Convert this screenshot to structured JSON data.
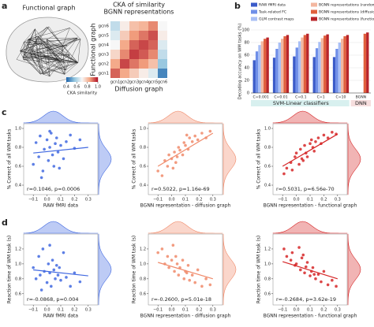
{
  "panel_labels": [
    "a",
    "b",
    "c",
    "d"
  ],
  "brain_graph": {
    "title": "Functional graph"
  },
  "chart_data": [
    {
      "type": "heatmap",
      "title": [
        "CKA of similarity",
        "BGNN representations"
      ],
      "rows": [
        "gcn6",
        "gcn5",
        "gcn4",
        "gcn3",
        "gcn2",
        "gcn1"
      ],
      "columns": [
        "gcn1",
        "gcn2",
        "gcn3",
        "gcn4",
        "gcn5",
        "gcn6"
      ],
      "values": [
        [
          0.62,
          0.72,
          0.8,
          0.82,
          0.88,
          0.7
        ],
        [
          0.66,
          0.78,
          0.86,
          0.9,
          0.94,
          0.72
        ],
        [
          0.7,
          0.84,
          0.92,
          0.95,
          0.92,
          0.66
        ],
        [
          0.76,
          0.88,
          0.96,
          0.93,
          0.88,
          0.62
        ],
        [
          0.84,
          0.95,
          0.9,
          0.86,
          0.8,
          0.56
        ],
        [
          0.92,
          0.84,
          0.78,
          0.72,
          0.66,
          0.45
        ]
      ],
      "xlabel": "Diffusion graph",
      "ylabel": "Functional graph",
      "clim": [
        0.4,
        1.0
      ],
      "cticks": [
        0.4,
        0.6,
        0.8,
        {
          "value": 1.0,
          "label": "1.0"
        }
      ],
      "colorbar_label": "CKA similarity"
    },
    {
      "type": "bar",
      "ylabel": "Decoding accuracy on WM tasks (%)",
      "categories": [
        "C=0.001",
        "C=0.01",
        "C=0.1",
        "C=1",
        "C=10",
        "BGNN"
      ],
      "group_labels": [
        "SVM-Linear classifiers",
        "DNN"
      ],
      "ylim": [
        0,
        100
      ],
      "yticks": [
        0,
        20,
        40,
        60,
        80,
        100
      ],
      "series": [
        {
          "name": "RAW fMRI data",
          "color": "#3b5bc9",
          "values": [
            52,
            56,
            58,
            57,
            57,
            null
          ]
        },
        {
          "name": "Task-related FC",
          "color": "#6f8fe8",
          "values": [
            66,
            70,
            72,
            71,
            70,
            null
          ]
        },
        {
          "name": "GLM contrast maps",
          "color": "#a9bff5",
          "values": [
            76,
            80,
            82,
            81,
            80,
            null
          ]
        },
        {
          "name": "BGNN representations (random graph)",
          "color": "#f3b79f",
          "values": [
            82,
            86,
            88,
            87,
            86,
            null
          ]
        },
        {
          "name": "BGNN representations (diffusion graph)",
          "color": "#e0603d",
          "values": [
            86,
            90,
            92,
            91,
            90,
            94
          ]
        },
        {
          "name": "BGNN representations (functional graph)",
          "color": "#b8242a",
          "values": [
            88,
            92,
            94,
            93,
            92,
            96
          ]
        }
      ]
    },
    {
      "type": "scatter",
      "color": "#4169e1",
      "xlabel": "RAW fMRI data",
      "ylabel": "% Correct of all WM tasks",
      "annotation": "r=0.1046, p=0.0006",
      "x": [
        -0.1,
        -0.08,
        -0.06,
        -0.05,
        -0.03,
        -0.02,
        0,
        0.01,
        0.02,
        0.03,
        0.04,
        0.05,
        0.06,
        0.07,
        0.08,
        0.1,
        0.12,
        0.14,
        0.17,
        0.2,
        0.24,
        -0.04,
        0.02,
        0.09
      ],
      "y": [
        0.62,
        0.85,
        0.7,
        0.92,
        0.55,
        0.78,
        0.88,
        0.66,
        0.8,
        0.95,
        0.72,
        0.6,
        0.84,
        0.9,
        0.75,
        0.82,
        0.68,
        0.86,
        0.93,
        0.79,
        0.88,
        0.48,
        0.97,
        0.58
      ],
      "fit": {
        "x": [
          -0.1,
          0.3
        ],
        "y": [
          0.74,
          0.8
        ]
      },
      "xlim": [
        -0.17,
        0.37
      ],
      "xticks": [
        {
          "value": -0.1,
          "label": "−0.1"
        },
        {
          "value": 0,
          "label": "0.0"
        },
        0.1,
        0.2,
        0.3
      ],
      "ylim": [
        0.3,
        1.05
      ],
      "yticks": [
        0.4,
        0.6,
        0.8,
        {
          "value": 1.0,
          "label": "1.0"
        }
      ]
    },
    {
      "type": "scatter",
      "color": "#f08a6a",
      "xlabel": "BGNN representation - diffusion graph",
      "ylabel": "% Correct of all WM tasks",
      "annotation": "r=0.5022, p=1.16e-69",
      "x": [
        -0.1,
        -0.07,
        -0.05,
        -0.03,
        -0.02,
        0,
        0.01,
        0.02,
        0.04,
        0.05,
        0.06,
        0.08,
        0.09,
        0.1,
        0.12,
        0.13,
        0.15,
        0.17,
        0.19,
        0.22,
        0.25,
        0.28,
        0.03,
        0.11
      ],
      "y": [
        0.55,
        0.5,
        0.66,
        0.6,
        0.72,
        0.68,
        0.58,
        0.75,
        0.7,
        0.8,
        0.77,
        0.72,
        0.85,
        0.82,
        0.78,
        0.9,
        0.86,
        0.92,
        0.88,
        0.95,
        0.9,
        0.97,
        0.64,
        0.93
      ],
      "fit": {
        "x": [
          -0.1,
          0.3
        ],
        "y": [
          0.6,
          0.95
        ]
      },
      "xlim": [
        -0.17,
        0.37
      ],
      "xticks": [
        {
          "value": -0.1,
          "label": "−0.1"
        },
        {
          "value": 0,
          "label": "0.0"
        },
        0.1,
        0.2,
        0.3
      ],
      "ylim": [
        0.3,
        1.05
      ],
      "yticks": [
        0.4,
        0.6,
        0.8,
        {
          "value": 1.0,
          "label": "1.0"
        }
      ]
    },
    {
      "type": "scatter",
      "color": "#d62728",
      "xlabel": "BGNN representation - functional graph",
      "ylabel": "% Correct of all WM tasks",
      "annotation": "r=0.5031, p=6.56e-70",
      "x": [
        -0.09,
        -0.07,
        -0.04,
        -0.03,
        -0.01,
        0,
        0.02,
        0.03,
        0.04,
        0.06,
        0.07,
        0.08,
        0.1,
        0.11,
        0.12,
        0.14,
        0.16,
        0.18,
        0.2,
        0.23,
        0.26,
        0.29,
        0.05,
        0.13
      ],
      "y": [
        0.52,
        0.58,
        0.64,
        0.56,
        0.7,
        0.74,
        0.62,
        0.78,
        0.68,
        0.82,
        0.74,
        0.7,
        0.84,
        0.88,
        0.8,
        0.86,
        0.9,
        0.84,
        0.93,
        0.9,
        0.96,
        0.94,
        0.66,
        0.76
      ],
      "fit": {
        "x": [
          -0.1,
          0.3
        ],
        "y": [
          0.6,
          0.94
        ]
      },
      "xlim": [
        -0.17,
        0.37
      ],
      "xticks": [
        {
          "value": -0.1,
          "label": "−0.1"
        },
        {
          "value": 0,
          "label": "0.0"
        },
        0.1,
        0.2,
        0.3
      ],
      "ylim": [
        0.3,
        1.05
      ],
      "yticks": [
        0.4,
        0.6,
        0.8,
        {
          "value": 1.0,
          "label": "1.0"
        }
      ]
    },
    {
      "type": "scatter",
      "color": "#4169e1",
      "xlabel": "RAW fMRI data",
      "ylabel": "Reaction time of WM task (s)",
      "annotation": "r=-0.0868, p=0.004",
      "x": [
        -0.1,
        -0.08,
        -0.06,
        -0.05,
        -0.03,
        -0.02,
        0,
        0.01,
        0.02,
        0.03,
        0.04,
        0.05,
        0.06,
        0.07,
        0.08,
        0.1,
        0.12,
        0.14,
        0.17,
        0.2,
        0.24,
        -0.04,
        0.02,
        0.09
      ],
      "y": [
        0.95,
        0.8,
        1.1,
        0.85,
        1.2,
        0.9,
        0.75,
        1.0,
        0.88,
        0.7,
        1.05,
        0.92,
        0.8,
        0.98,
        0.85,
        0.78,
        1.15,
        0.82,
        0.7,
        0.88,
        0.76,
        0.65,
        1.25,
        0.95
      ],
      "fit": {
        "x": [
          -0.1,
          0.3
        ],
        "y": [
          0.92,
          0.84
        ]
      },
      "xlim": [
        -0.17,
        0.37
      ],
      "xticks": [
        {
          "value": -0.1,
          "label": "−0.1"
        },
        {
          "value": 0,
          "label": "0.0"
        },
        0.1,
        0.2,
        0.3
      ],
      "ylim": [
        0.45,
        1.4
      ],
      "yticks": [
        0.6,
        0.8,
        {
          "value": 1.0,
          "label": "1.0"
        },
        1.2
      ]
    },
    {
      "type": "scatter",
      "color": "#f08a6a",
      "xlabel": "BGNN representation - diffusion graph",
      "ylabel": "Reaction time of WM task (s)",
      "annotation": "r=-0.2600, p=5.01e-18",
      "x": [
        -0.1,
        -0.07,
        -0.05,
        -0.03,
        -0.02,
        0,
        0.01,
        0.02,
        0.04,
        0.05,
        0.06,
        0.08,
        0.09,
        0.1,
        0.12,
        0.13,
        0.15,
        0.17,
        0.19,
        0.22,
        0.25,
        0.28,
        0.03,
        0.11
      ],
      "y": [
        1.15,
        1.2,
        1.0,
        1.1,
        0.95,
        1.05,
        1.25,
        0.9,
        1.0,
        0.85,
        0.95,
        1.05,
        0.8,
        0.9,
        0.98,
        0.78,
        0.85,
        0.75,
        0.92,
        0.7,
        0.8,
        0.72,
        1.1,
        0.88
      ],
      "fit": {
        "x": [
          -0.1,
          0.3
        ],
        "y": [
          1.02,
          0.8
        ]
      },
      "xlim": [
        -0.17,
        0.37
      ],
      "xticks": [
        {
          "value": -0.1,
          "label": "−0.1"
        },
        {
          "value": 0,
          "label": "0.0"
        },
        0.1,
        0.2,
        0.3
      ],
      "ylim": [
        0.45,
        1.4
      ],
      "yticks": [
        0.6,
        0.8,
        {
          "value": 1.0,
          "label": "1.0"
        },
        1.2
      ]
    },
    {
      "type": "scatter",
      "color": "#d62728",
      "xlabel": "BGNN representation - functional graph",
      "ylabel": "Reaction time of WM task (s)",
      "annotation": "r=-0.2684, p=3.62e-19",
      "x": [
        -0.09,
        -0.07,
        -0.04,
        -0.03,
        -0.01,
        0,
        0.02,
        0.03,
        0.04,
        0.06,
        0.07,
        0.08,
        0.1,
        0.11,
        0.12,
        0.14,
        0.16,
        0.18,
        0.2,
        0.23,
        0.26,
        0.29,
        0.05,
        0.13
      ],
      "y": [
        1.2,
        1.1,
        1.05,
        1.15,
        0.98,
        1.0,
        1.22,
        0.92,
        1.08,
        0.88,
        0.96,
        1.02,
        0.84,
        0.9,
        0.95,
        0.8,
        0.86,
        0.76,
        0.9,
        0.72,
        0.78,
        0.7,
        1.12,
        0.86
      ],
      "fit": {
        "x": [
          -0.1,
          0.3
        ],
        "y": [
          1.03,
          0.8
        ]
      },
      "xlim": [
        -0.17,
        0.37
      ],
      "xticks": [
        {
          "value": -0.1,
          "label": "−0.1"
        },
        {
          "value": 0,
          "label": "0.0"
        },
        0.1,
        0.2,
        0.3
      ],
      "ylim": [
        0.45,
        1.4
      ],
      "yticks": [
        0.6,
        0.8,
        {
          "value": 1.0,
          "label": "1.0"
        },
        1.2
      ]
    }
  ]
}
